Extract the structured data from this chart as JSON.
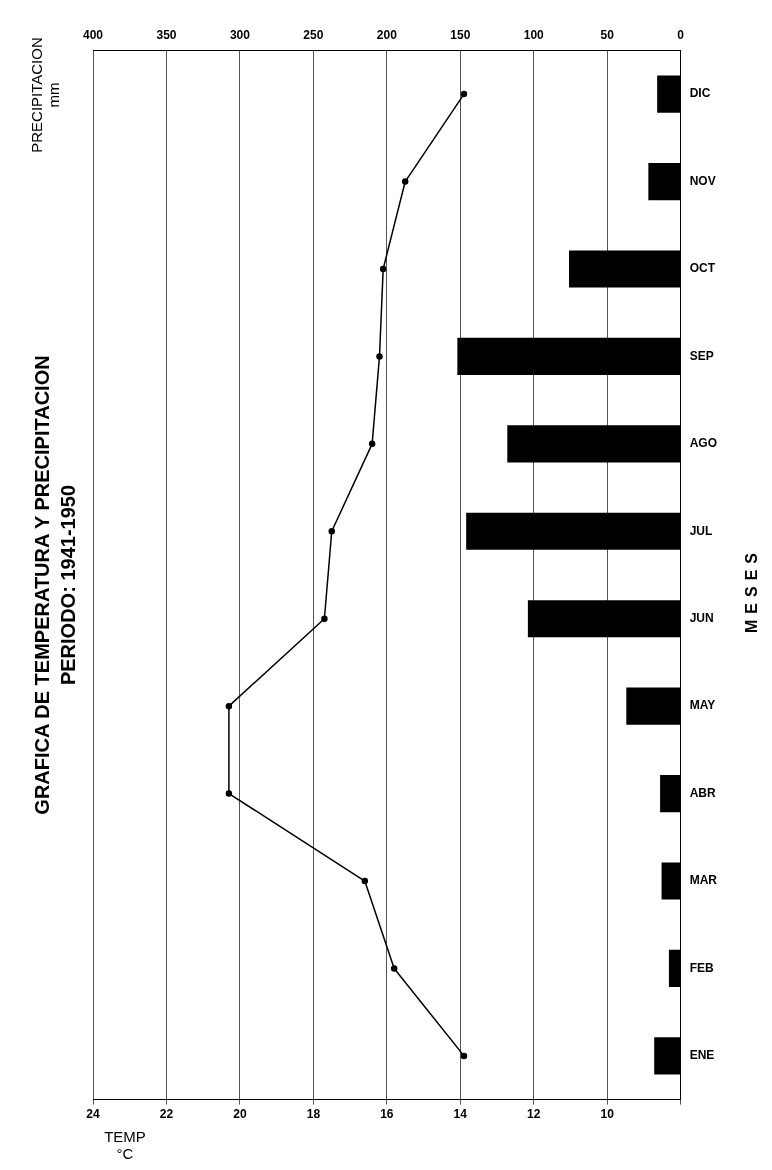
{
  "chart_data": {
    "type": "bar",
    "orientation": "horizontal",
    "title": "GRAFICA DE TEMPERATURA Y PRECIPITACION",
    "subtitle": "PERIODO: 1941-1950",
    "xlabel": "TEMP °C",
    "x2label": "PRECIPITACION mm",
    "ylabel": "MESES",
    "categories": [
      "DIC",
      "NOV",
      "OCT",
      "SEP",
      "AGO",
      "JUL",
      "JUN",
      "MAY",
      "ABR",
      "MAR",
      "FEB",
      "ENE"
    ],
    "series": [
      {
        "type": "bar",
        "axis": "x2",
        "color": "#000000",
        "values": [
          16,
          22,
          76,
          152,
          118,
          146,
          104,
          37,
          14,
          13,
          8,
          18
        ]
      },
      {
        "type": "line",
        "color": "#000000",
        "values": [
          13.9,
          15.5,
          16.1,
          16.2,
          16.4,
          17.5,
          17.7,
          20.3,
          20.3,
          16.6,
          15.8,
          13.9
        ]
      }
    ],
    "xlim": [
      24,
      8
    ],
    "xticks": [
      24,
      22,
      20,
      18,
      16,
      14,
      12,
      10,
      {
        "value": 8,
        "label": null
      }
    ],
    "x2lim": [
      400,
      0
    ],
    "x2ticks": [
      400,
      350,
      300,
      250,
      200,
      150,
      100,
      50,
      0
    ],
    "grid": "x",
    "marker": "circle",
    "line_style": "solid"
  }
}
